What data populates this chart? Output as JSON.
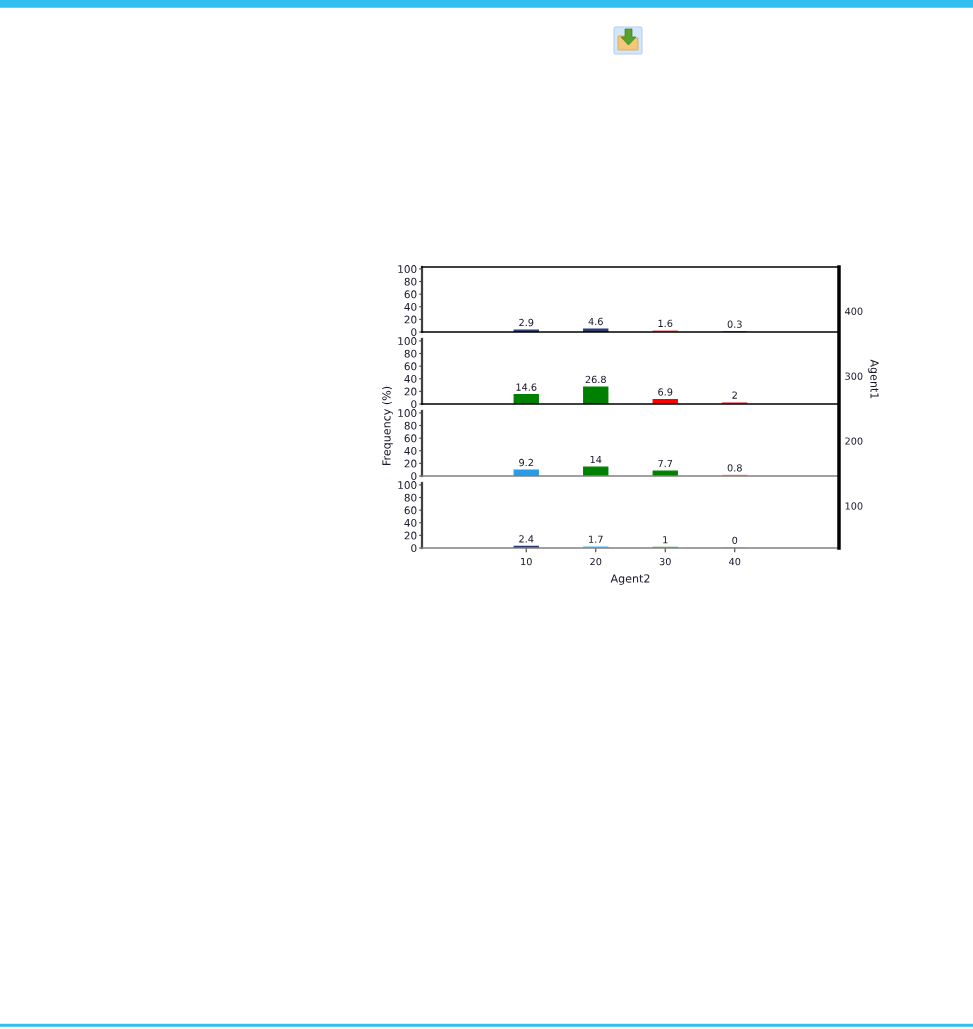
{
  "chart_data": [
    {
      "type": "bar",
      "x": [
        10,
        20,
        30,
        40
      ],
      "values": [
        2.9,
        4.6,
        1.6,
        0.3
      ],
      "colors": [
        "#2b3a6e",
        "#2b3a6e",
        "#f08080",
        "#33aa33"
      ],
      "xlim": [
        -5,
        55
      ],
      "xticks": [
        10,
        20,
        30,
        40
      ],
      "ylim": [
        0,
        103
      ],
      "yticks": [
        0,
        20,
        40,
        60,
        80,
        100
      ],
      "tick_labels": "y",
      "data_labels": true
    },
    {
      "type": "bar",
      "x": [
        10,
        20,
        30,
        40
      ],
      "values": [
        14.6,
        26.8,
        6.9,
        2
      ],
      "colors": [
        "#008000",
        "#008000",
        "#ff0000",
        "#f08080"
      ],
      "xlim": [
        -5,
        55
      ],
      "xticks": [
        10,
        20,
        30,
        40
      ],
      "ylim": [
        0,
        103
      ],
      "yticks": [
        0,
        20,
        40,
        60,
        80,
        100
      ],
      "tick_labels": "y",
      "data_labels": true
    },
    {
      "type": "bar",
      "x": [
        10,
        20,
        30,
        40
      ],
      "values": [
        9.2,
        14,
        7.7,
        0.8
      ],
      "colors": [
        "#2a9be6",
        "#008000",
        "#008000",
        "#f08080"
      ],
      "xlim": [
        -5,
        55
      ],
      "xticks": [
        10,
        20,
        30,
        40
      ],
      "ylim": [
        0,
        103
      ],
      "yticks": [
        0,
        20,
        40,
        60,
        80,
        100
      ],
      "tick_labels": "y",
      "data_labels": true,
      "ylabel": "Frequency (%)"
    },
    {
      "type": "bar",
      "x": [
        10,
        20,
        30,
        40
      ],
      "values": [
        2.4,
        1.7,
        1,
        0
      ],
      "colors": [
        "#2b3a6e",
        "#87cefa",
        "#6fb86f",
        "#90ee90"
      ],
      "xlim": [
        -5,
        55
      ],
      "xticks": [
        10,
        20,
        30,
        40
      ],
      "ylim": [
        0,
        103
      ],
      "yticks": [
        0,
        20,
        40,
        60,
        80,
        100
      ],
      "data_labels": true,
      "xlabel": "Agent2",
      "y2label": "Agent1",
      "y2lim": [
        35,
        468
      ],
      "y2ticks": [
        100,
        200,
        300,
        400
      ]
    }
  ]
}
